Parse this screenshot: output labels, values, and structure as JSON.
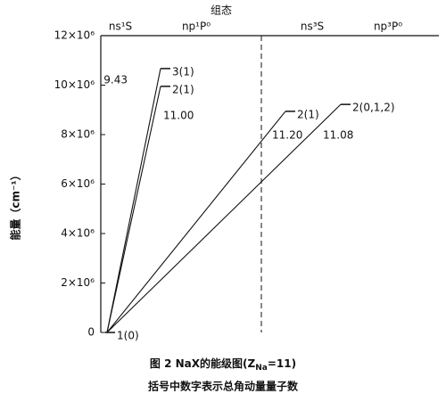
{
  "chart_data": {
    "type": "energy-level",
    "header": "组态",
    "y_label": "能量（cm⁻¹）",
    "ylim": [
      0,
      12000000
    ],
    "yticks": [
      0,
      {
        "value": 2000000,
        "label": "2×10⁶"
      },
      {
        "value": 4000000,
        "label": "4×10⁶"
      },
      {
        "value": 6000000,
        "label": "6×10⁶"
      },
      {
        "value": 8000000,
        "label": "8×10⁶"
      },
      {
        "value": 10000000,
        "label": "10×10⁶"
      },
      {
        "value": 12000000,
        "label": "12×10⁶"
      }
    ],
    "columns": [
      {
        "name": "ns¹S",
        "levels": [
          {
            "label": "1(0)",
            "value": 0
          }
        ]
      },
      {
        "name": "np¹P⁰",
        "levels": [
          {
            "label": "3(1)",
            "value": 10670000,
            "note": "9.43"
          },
          {
            "label": "2(1)",
            "value": 9950000,
            "note": "11.00"
          }
        ]
      },
      {
        "name": "ns³S",
        "levels": [
          {
            "label": "2(1)",
            "value": 8940000,
            "note": "11.20"
          }
        ]
      },
      {
        "name": "np³P⁰",
        "levels": [
          {
            "label": "2(0,1,2)",
            "value": 9220000,
            "note": "11.08"
          }
        ]
      }
    ],
    "caption": {
      "prefix": "图 2  NaX的能级图(Z",
      "sub": "Na",
      "suffix": "=11)",
      "line2": "括号中数字表示总角动量量子数"
    }
  }
}
